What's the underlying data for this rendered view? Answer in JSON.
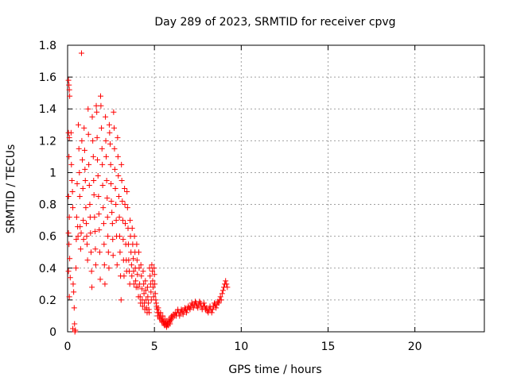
{
  "chart_data": {
    "type": "scatter",
    "title": "Day 289 of 2023, SRMTID for receiver cpvg",
    "xlabel": "GPS time / hours",
    "ylabel": "SRMTID / TECUs",
    "xlim": [
      0,
      24
    ],
    "ylim": [
      0,
      1.8
    ],
    "xticks": [
      0,
      5,
      10,
      15,
      20
    ],
    "xtick_labels": [
      "0",
      "5",
      "10",
      "15",
      "20"
    ],
    "yticks": [
      0,
      0.2,
      0.4,
      0.6,
      0.8,
      1,
      1.2,
      1.4,
      1.6,
      1.8
    ],
    "ytick_labels": [
      "0",
      "0.2",
      "0.4",
      "0.6",
      "0.8",
      "1",
      "1.2",
      "1.4",
      "1.6",
      "1.8"
    ],
    "grid": true,
    "marker": "+",
    "color": "#ff0000",
    "series": [
      {
        "name": "SRMTID",
        "points": [
          [
            0.05,
            1.58
          ],
          [
            0.08,
            1.55
          ],
          [
            0.1,
            1.52
          ],
          [
            0.12,
            1.48
          ],
          [
            0.05,
            1.25
          ],
          [
            0.1,
            1.22
          ],
          [
            0.08,
            1.1
          ],
          [
            0.05,
            0.85
          ],
          [
            0.1,
            0.72
          ],
          [
            0.05,
            0.62
          ],
          [
            0.08,
            0.55
          ],
          [
            0.12,
            0.46
          ],
          [
            0.05,
            0.38
          ],
          [
            0.1,
            0.22
          ],
          [
            0.15,
            0.34
          ],
          [
            0.2,
            1.25
          ],
          [
            0.22,
            1.05
          ],
          [
            0.25,
            0.95
          ],
          [
            0.28,
            0.88
          ],
          [
            0.3,
            0.78
          ],
          [
            0.32,
            0.3
          ],
          [
            0.35,
            0.25
          ],
          [
            0.38,
            0.15
          ],
          [
            0.4,
            0.05
          ],
          [
            0.42,
            0.0
          ],
          [
            0.45,
            0.01
          ],
          [
            0.3,
            0.02
          ],
          [
            0.48,
            0.4
          ],
          [
            0.5,
            0.58
          ],
          [
            0.52,
            0.72
          ],
          [
            0.55,
            0.93
          ],
          [
            0.58,
            0.66
          ],
          [
            0.6,
            0.6
          ],
          [
            0.62,
            1.3
          ],
          [
            0.65,
            1.15
          ],
          [
            0.68,
            1.0
          ],
          [
            0.7,
            0.85
          ],
          [
            0.72,
            0.66
          ],
          [
            0.75,
            0.52
          ],
          [
            0.78,
            0.62
          ],
          [
            0.8,
            1.75
          ],
          [
            0.82,
            1.2
          ],
          [
            0.85,
            1.08
          ],
          [
            0.88,
            0.9
          ],
          [
            0.9,
            0.7
          ],
          [
            0.92,
            0.58
          ],
          [
            0.95,
            1.28
          ],
          [
            0.98,
            1.14
          ],
          [
            1.0,
            1.02
          ],
          [
            1.02,
            0.95
          ],
          [
            1.05,
            0.78
          ],
          [
            1.08,
            0.68
          ],
          [
            1.1,
            0.6
          ],
          [
            1.12,
            0.55
          ],
          [
            1.15,
            0.45
          ],
          [
            1.18,
            1.4
          ],
          [
            1.2,
            1.24
          ],
          [
            1.22,
            1.05
          ],
          [
            1.25,
            0.92
          ],
          [
            1.28,
            0.8
          ],
          [
            1.3,
            0.72
          ],
          [
            1.32,
            0.62
          ],
          [
            1.35,
            0.5
          ],
          [
            1.38,
            0.38
          ],
          [
            1.4,
            0.28
          ],
          [
            1.42,
            1.35
          ],
          [
            1.45,
            1.2
          ],
          [
            1.48,
            1.1
          ],
          [
            1.5,
            0.95
          ],
          [
            1.52,
            0.86
          ],
          [
            1.55,
            0.72
          ],
          [
            1.58,
            0.63
          ],
          [
            1.6,
            0.52
          ],
          [
            1.62,
            0.42
          ],
          [
            1.65,
            1.42
          ],
          [
            1.68,
            1.38
          ],
          [
            1.7,
            1.22
          ],
          [
            1.72,
            1.08
          ],
          [
            1.75,
            0.98
          ],
          [
            1.78,
            0.85
          ],
          [
            1.8,
            0.74
          ],
          [
            1.82,
            0.64
          ],
          [
            1.85,
            0.5
          ],
          [
            1.88,
            0.33
          ],
          [
            1.9,
            1.48
          ],
          [
            1.92,
            1.42
          ],
          [
            1.95,
            1.28
          ],
          [
            1.98,
            1.15
          ],
          [
            2.0,
            1.05
          ],
          [
            2.02,
            0.92
          ],
          [
            2.05,
            0.78
          ],
          [
            2.08,
            0.68
          ],
          [
            2.1,
            0.55
          ],
          [
            2.12,
            0.42
          ],
          [
            2.15,
            0.3
          ],
          [
            2.18,
            1.35
          ],
          [
            2.2,
            1.2
          ],
          [
            2.22,
            1.1
          ],
          [
            2.25,
            0.95
          ],
          [
            2.28,
            0.84
          ],
          [
            2.3,
            0.72
          ],
          [
            2.32,
            0.6
          ],
          [
            2.35,
            0.5
          ],
          [
            2.38,
            0.4
          ],
          [
            2.4,
            1.3
          ],
          [
            2.42,
            1.25
          ],
          [
            2.45,
            1.18
          ],
          [
            2.48,
            1.05
          ],
          [
            2.5,
            0.93
          ],
          [
            2.52,
            0.82
          ],
          [
            2.55,
            0.75
          ],
          [
            2.58,
            0.68
          ],
          [
            2.6,
            0.58
          ],
          [
            2.62,
            0.48
          ],
          [
            2.65,
            1.38
          ],
          [
            2.68,
            1.28
          ],
          [
            2.7,
            1.15
          ],
          [
            2.72,
            1.02
          ],
          [
            2.75,
            0.9
          ],
          [
            2.78,
            0.8
          ],
          [
            2.8,
            0.7
          ],
          [
            2.82,
            0.6
          ],
          [
            2.85,
            0.42
          ],
          [
            2.88,
            1.22
          ],
          [
            2.9,
            1.1
          ],
          [
            2.92,
            0.98
          ],
          [
            2.95,
            0.85
          ],
          [
            2.98,
            0.72
          ],
          [
            3.0,
            0.6
          ],
          [
            3.02,
            0.5
          ],
          [
            3.05,
            0.35
          ],
          [
            3.08,
            0.2
          ],
          [
            3.1,
            1.05
          ],
          [
            3.12,
            0.95
          ],
          [
            3.15,
            0.82
          ],
          [
            3.18,
            0.7
          ],
          [
            3.2,
            0.58
          ],
          [
            3.22,
            0.45
          ],
          [
            3.25,
            0.35
          ],
          [
            3.28,
            0.9
          ],
          [
            3.3,
            0.8
          ],
          [
            3.32,
            0.68
          ],
          [
            3.35,
            0.55
          ],
          [
            3.38,
            0.45
          ],
          [
            3.4,
            0.38
          ],
          [
            3.42,
            0.88
          ],
          [
            3.45,
            0.78
          ],
          [
            3.48,
            0.65
          ],
          [
            3.5,
            0.55
          ],
          [
            3.52,
            0.45
          ],
          [
            3.55,
            0.38
          ],
          [
            3.58,
            0.3
          ],
          [
            3.6,
            0.7
          ],
          [
            3.62,
            0.6
          ],
          [
            3.65,
            0.5
          ],
          [
            3.68,
            0.42
          ],
          [
            3.7,
            0.35
          ],
          [
            3.72,
            0.65
          ],
          [
            3.75,
            0.55
          ],
          [
            3.78,
            0.46
          ],
          [
            3.8,
            0.38
          ],
          [
            3.82,
            0.3
          ],
          [
            3.85,
            0.6
          ],
          [
            3.88,
            0.5
          ],
          [
            3.9,
            0.4
          ],
          [
            3.92,
            0.32
          ],
          [
            3.95,
            0.28
          ],
          [
            3.98,
            0.55
          ],
          [
            4.0,
            0.45
          ],
          [
            4.02,
            0.36
          ],
          [
            4.05,
            0.28
          ],
          [
            4.08,
            0.22
          ],
          [
            4.1,
            0.5
          ],
          [
            4.12,
            0.4
          ],
          [
            4.15,
            0.3
          ],
          [
            4.18,
            0.22
          ],
          [
            4.2,
            0.18
          ],
          [
            4.22,
            0.42
          ],
          [
            4.25,
            0.35
          ],
          [
            4.28,
            0.27
          ],
          [
            4.3,
            0.2
          ],
          [
            4.32,
            0.16
          ],
          [
            4.35,
            0.38
          ],
          [
            4.38,
            0.3
          ],
          [
            4.4,
            0.24
          ],
          [
            4.42,
            0.18
          ],
          [
            4.45,
            0.14
          ],
          [
            4.48,
            0.32
          ],
          [
            4.5,
            0.26
          ],
          [
            4.52,
            0.2
          ],
          [
            4.55,
            0.15
          ],
          [
            4.58,
            0.12
          ],
          [
            4.6,
            0.28
          ],
          [
            4.62,
            0.22
          ],
          [
            4.65,
            0.18
          ],
          [
            4.68,
            0.14
          ],
          [
            4.7,
            0.12
          ],
          [
            4.72,
            0.4
          ],
          [
            4.75,
            0.35
          ],
          [
            4.78,
            0.3
          ],
          [
            4.8,
            0.25
          ],
          [
            4.82,
            0.2
          ],
          [
            4.85,
            0.42
          ],
          [
            4.88,
            0.38
          ],
          [
            4.9,
            0.32
          ],
          [
            4.92,
            0.28
          ],
          [
            4.95,
            0.22
          ],
          [
            4.98,
            0.4
          ],
          [
            5.0,
            0.36
          ],
          [
            5.02,
            0.3
          ],
          [
            5.05,
            0.24
          ],
          [
            5.08,
            0.2
          ],
          [
            5.1,
            0.18
          ],
          [
            5.12,
            0.16
          ],
          [
            5.15,
            0.14
          ],
          [
            5.18,
            0.12
          ],
          [
            5.2,
            0.1
          ],
          [
            5.22,
            0.15
          ],
          [
            5.25,
            0.12
          ],
          [
            5.28,
            0.1
          ],
          [
            5.3,
            0.09
          ],
          [
            5.32,
            0.08
          ],
          [
            5.35,
            0.12
          ],
          [
            5.38,
            0.1
          ],
          [
            5.4,
            0.08
          ],
          [
            5.42,
            0.07
          ],
          [
            5.45,
            0.06
          ],
          [
            5.48,
            0.1
          ],
          [
            5.5,
            0.08
          ],
          [
            5.52,
            0.06
          ],
          [
            5.55,
            0.05
          ],
          [
            5.58,
            0.04
          ],
          [
            5.6,
            0.08
          ],
          [
            5.62,
            0.06
          ],
          [
            5.65,
            0.05
          ],
          [
            5.68,
            0.04
          ],
          [
            5.7,
            0.03
          ],
          [
            5.72,
            0.07
          ],
          [
            5.75,
            0.05
          ],
          [
            5.78,
            0.04
          ],
          [
            5.8,
            0.05
          ],
          [
            5.82,
            0.06
          ],
          [
            5.85,
            0.08
          ],
          [
            5.88,
            0.06
          ],
          [
            5.9,
            0.05
          ],
          [
            5.92,
            0.07
          ],
          [
            5.95,
            0.09
          ],
          [
            5.98,
            0.08
          ],
          [
            6.0,
            0.1
          ],
          [
            6.05,
            0.09
          ],
          [
            6.1,
            0.11
          ],
          [
            6.15,
            0.1
          ],
          [
            6.2,
            0.12
          ],
          [
            6.25,
            0.1
          ],
          [
            6.3,
            0.12
          ],
          [
            6.35,
            0.14
          ],
          [
            6.4,
            0.12
          ],
          [
            6.45,
            0.1
          ],
          [
            6.5,
            0.12
          ],
          [
            6.55,
            0.14
          ],
          [
            6.6,
            0.13
          ],
          [
            6.65,
            0.11
          ],
          [
            6.7,
            0.13
          ],
          [
            6.75,
            0.15
          ],
          [
            6.8,
            0.14
          ],
          [
            6.85,
            0.12
          ],
          [
            6.9,
            0.14
          ],
          [
            6.95,
            0.16
          ],
          [
            7.0,
            0.15
          ],
          [
            7.05,
            0.14
          ],
          [
            7.1,
            0.16
          ],
          [
            7.15,
            0.18
          ],
          [
            7.2,
            0.17
          ],
          [
            7.25,
            0.15
          ],
          [
            7.3,
            0.17
          ],
          [
            7.35,
            0.19
          ],
          [
            7.4,
            0.18
          ],
          [
            7.45,
            0.16
          ],
          [
            7.5,
            0.15
          ],
          [
            7.55,
            0.17
          ],
          [
            7.6,
            0.19
          ],
          [
            7.65,
            0.18
          ],
          [
            7.7,
            0.16
          ],
          [
            7.75,
            0.14
          ],
          [
            7.8,
            0.16
          ],
          [
            7.85,
            0.18
          ],
          [
            7.9,
            0.16
          ],
          [
            7.95,
            0.14
          ],
          [
            8.0,
            0.15
          ],
          [
            8.05,
            0.13
          ],
          [
            8.1,
            0.12
          ],
          [
            8.15,
            0.14
          ],
          [
            8.2,
            0.16
          ],
          [
            8.25,
            0.14
          ],
          [
            8.3,
            0.12
          ],
          [
            8.35,
            0.14
          ],
          [
            8.4,
            0.16
          ],
          [
            8.45,
            0.18
          ],
          [
            8.5,
            0.17
          ],
          [
            8.55,
            0.15
          ],
          [
            8.6,
            0.17
          ],
          [
            8.65,
            0.19
          ],
          [
            8.7,
            0.18
          ],
          [
            8.75,
            0.2
          ],
          [
            8.8,
            0.22
          ],
          [
            8.85,
            0.2
          ],
          [
            8.9,
            0.24
          ],
          [
            8.95,
            0.26
          ],
          [
            9.0,
            0.28
          ],
          [
            9.05,
            0.3
          ],
          [
            9.1,
            0.32
          ],
          [
            9.15,
            0.3
          ],
          [
            9.2,
            0.28
          ]
        ]
      }
    ]
  }
}
